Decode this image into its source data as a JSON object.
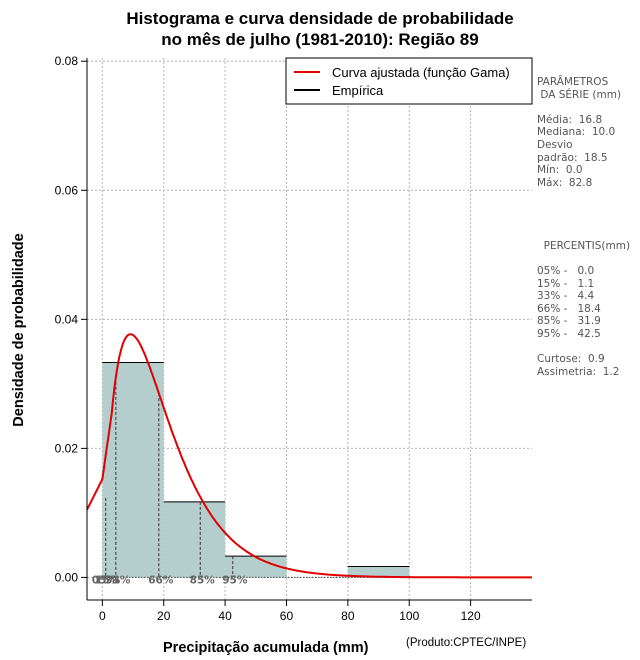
{
  "chart_data": {
    "type": "histogram",
    "title_lines": [
      "Histograma e curva densidade de probabilidade",
      "no mês de julho (1981-2010): Região 89"
    ],
    "xlabel": "Precipitação acumulada (mm)",
    "ylabel": "Densidade de probabilidade",
    "xlim": [
      -5,
      140
    ],
    "ylim": [
      -0.0035,
      0.0805
    ],
    "x_ticks": [
      0,
      20,
      40,
      60,
      80,
      100,
      120
    ],
    "y_ticks": [
      0.0,
      0.02,
      0.04,
      0.06,
      0.08
    ],
    "y_tick_labels": [
      "0.00",
      "0.02",
      "0.04",
      "0.06",
      "0.08"
    ],
    "grid": true,
    "bins": [
      {
        "start": 0,
        "end": 20,
        "density": 0.0333
      },
      {
        "start": 20,
        "end": 40,
        "density": 0.0117
      },
      {
        "start": 40,
        "end": 60,
        "density": 0.0033
      },
      {
        "start": 60,
        "end": 80,
        "density": 0.0
      },
      {
        "start": 80,
        "end": 100,
        "density": 0.0017
      }
    ],
    "fitted_curve": {
      "distribution": "gamma",
      "shape": 1.9,
      "scale": 10.2,
      "color": "#e00000"
    },
    "percentile_markers": [
      {
        "label": "05%",
        "x": 0.0
      },
      {
        "label": "15%",
        "x": 1.1
      },
      {
        "label": "33%",
        "x": 4.4
      },
      {
        "label": "66%",
        "x": 18.4
      },
      {
        "label": "85%",
        "x": 31.9
      },
      {
        "label": "95%",
        "x": 42.5
      }
    ],
    "legend": {
      "position": "top-right",
      "entries": [
        {
          "label": "Curva ajustada (função Gama)",
          "color": "#e00000"
        },
        {
          "label": "Empírica",
          "color": "#000000"
        }
      ]
    },
    "colors": {
      "bar_fill": "#b4cdcd",
      "bar_stroke": "#000000",
      "grid": "#b4b4b4"
    }
  },
  "side_panel": {
    "lines": [
      "PARÂMETROS",
      " DA SÉRIE (mm)",
      "",
      "Média:  16.8",
      "Mediana:  10.0",
      "Desvio",
      "padrão:  18.5",
      "Mín:  0.0",
      "Máx:  82.8",
      "",
      "",
      "",
      "",
      "  PERCENTIS(mm)",
      "",
      "05% -   0.0",
      "15% -   1.1",
      "33% -   4.4",
      "66% -   18.4",
      "85% -   31.9",
      "95% -   42.5",
      "",
      "Curtose:  0.9",
      "Assimetria:  1.2"
    ]
  },
  "credit": "(Produto:CPTEC/INPE)"
}
